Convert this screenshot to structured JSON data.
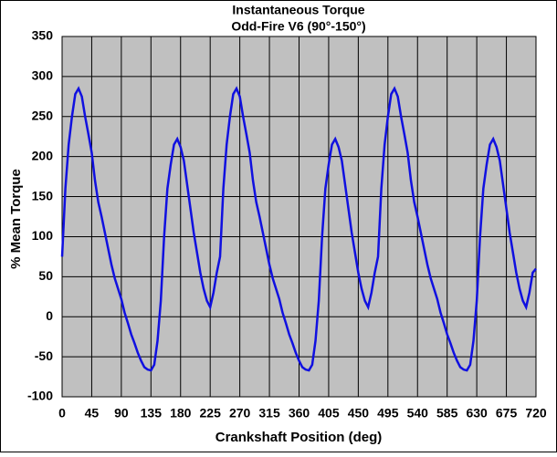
{
  "chart_data": {
    "type": "line",
    "title": "Instantaneous Torque",
    "subtitle": "Odd-Fire V6  (90°-150°)",
    "xlabel": "Crankshaft Position (deg)",
    "ylabel": "% Mean Torque",
    "xlim": [
      0,
      720
    ],
    "ylim": [
      -100,
      350
    ],
    "xticks": [
      0,
      45,
      90,
      135,
      180,
      225,
      270,
      315,
      360,
      405,
      450,
      495,
      540,
      585,
      630,
      675,
      720
    ],
    "yticks": [
      -100,
      -50,
      0,
      50,
      100,
      150,
      200,
      250,
      300,
      350
    ],
    "grid": true,
    "x": [
      0,
      5,
      10,
      15,
      20,
      25,
      30,
      35,
      40,
      45,
      50,
      55,
      60,
      65,
      70,
      75,
      80,
      85,
      90,
      95,
      100,
      105,
      110,
      115,
      120,
      125,
      130,
      135,
      140,
      145,
      150,
      155,
      160,
      165,
      170,
      175,
      180,
      185,
      190,
      195,
      200,
      205,
      210,
      215,
      220,
      225,
      230,
      235,
      240,
      245,
      250,
      255,
      260,
      265,
      270,
      275,
      280,
      285,
      290,
      295,
      300,
      305,
      310,
      315,
      320,
      325,
      330,
      335,
      340,
      345,
      350,
      355,
      360,
      365,
      370,
      375,
      380,
      385,
      390,
      395,
      400,
      405,
      410,
      415,
      420,
      425,
      430,
      435,
      440,
      445,
      450,
      455,
      460,
      465,
      470,
      475,
      480,
      485,
      490,
      495,
      500,
      505,
      510,
      515,
      520,
      525,
      530,
      535,
      540,
      545,
      550,
      555,
      560,
      565,
      570,
      575,
      580,
      585,
      590,
      595,
      600,
      605,
      610,
      615,
      620,
      625,
      630,
      635,
      640,
      645,
      650,
      655,
      660,
      665,
      670,
      675,
      680,
      685,
      690,
      695,
      700,
      705,
      710,
      715,
      720
    ],
    "series": [
      {
        "name": "% Mean Torque",
        "color": "#1010e0",
        "values": [
          75,
          160,
          215,
          250,
          278,
          285,
          275,
          250,
          228,
          205,
          170,
          143,
          125,
          105,
          85,
          65,
          48,
          35,
          22,
          5,
          -8,
          -22,
          -33,
          -45,
          -55,
          -63,
          -66,
          -67,
          -60,
          -30,
          20,
          100,
          160,
          190,
          215,
          222,
          212,
          195,
          165,
          135,
          105,
          80,
          55,
          35,
          20,
          12,
          30,
          55,
          75,
          160,
          215,
          250,
          278,
          285,
          275,
          250,
          228,
          205,
          170,
          143,
          125,
          105,
          85,
          65,
          48,
          35,
          22,
          5,
          -8,
          -22,
          -33,
          -45,
          -55,
          -63,
          -66,
          -67,
          -60,
          -30,
          20,
          100,
          160,
          190,
          215,
          222,
          212,
          195,
          165,
          135,
          105,
          80,
          55,
          35,
          20,
          12,
          30,
          55,
          75,
          160,
          215,
          250,
          278,
          285,
          275,
          250,
          228,
          205,
          170,
          143,
          125,
          105,
          85,
          65,
          48,
          35,
          22,
          5,
          -8,
          -22,
          -33,
          -45,
          -55,
          -63,
          -66,
          -67,
          -60,
          -30,
          20,
          100,
          160,
          190,
          215,
          222,
          212,
          195,
          165,
          135,
          105,
          80,
          55,
          35,
          20,
          12,
          30,
          55,
          60
        ]
      }
    ]
  }
}
